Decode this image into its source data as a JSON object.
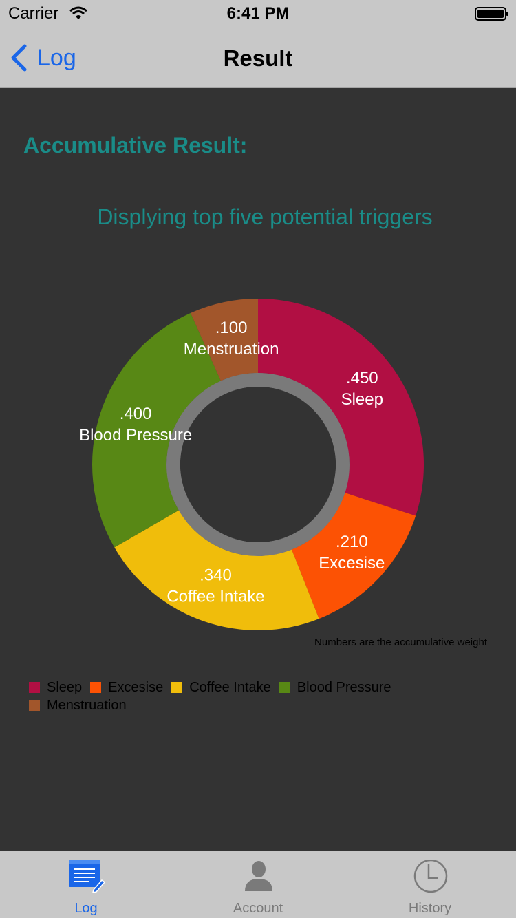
{
  "status_bar": {
    "carrier": "Carrier",
    "time": "6:41 PM"
  },
  "nav": {
    "back_label": "Log",
    "title": "Result"
  },
  "main": {
    "section_title": "Accumulative Result:",
    "note": "Numbers are the accumulative weight"
  },
  "chart_data": {
    "type": "pie",
    "subtitle": "Displying top five potential triggers",
    "categories": [
      "Sleep",
      "Excesise",
      "Coffee Intake",
      "Blood Pressure",
      "Menstruation"
    ],
    "values": [
      0.45,
      0.21,
      0.34,
      0.4,
      0.1
    ],
    "value_labels": [
      ".450",
      ".210",
      ".340",
      ".400",
      ".100"
    ],
    "colors": [
      "#b10f43",
      "#fc5204",
      "#f0bd0b",
      "#588815",
      "#a2562b"
    ],
    "hole": true,
    "legend_position": "bottom-left"
  },
  "tabs": [
    {
      "label": "Log",
      "icon": "log-icon",
      "active": true
    },
    {
      "label": "Account",
      "icon": "account-icon",
      "active": false
    },
    {
      "label": "History",
      "icon": "history-icon",
      "active": false
    }
  ],
  "colors": {
    "accent": "#1a66e8",
    "teal": "#1a8c88",
    "background": "#333333",
    "bar": "#c8c8c8",
    "inactive_tab": "#7a7a7a"
  }
}
